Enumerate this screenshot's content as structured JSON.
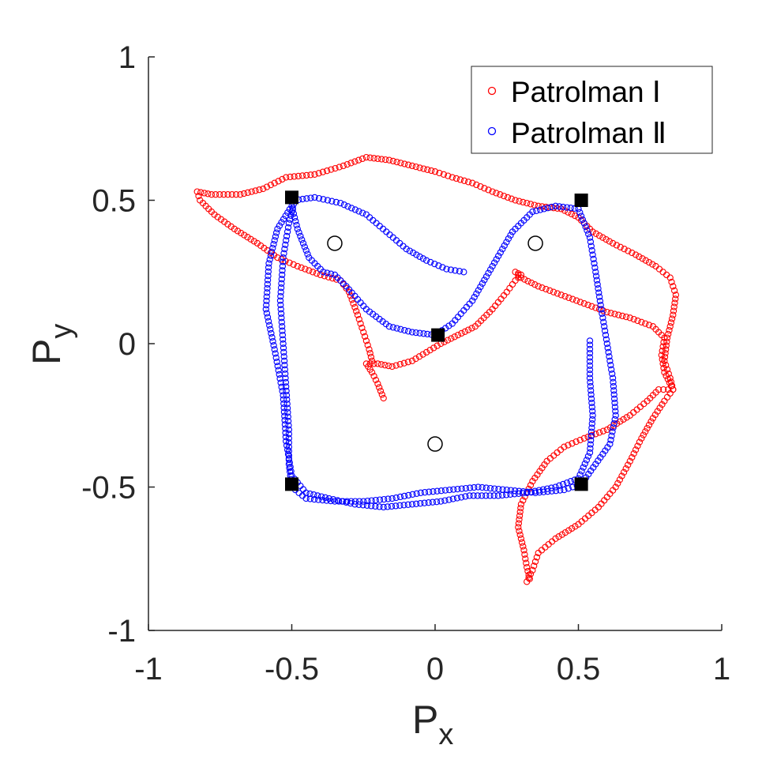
{
  "chart_data": {
    "type": "scatter",
    "xlabel": "P",
    "xlabel_sub": "x",
    "ylabel": "P",
    "ylabel_sub": "y",
    "xlim": [
      -1,
      1
    ],
    "ylim": [
      -1,
      1
    ],
    "xticks": [
      -1,
      -0.5,
      0,
      0.5,
      1
    ],
    "yticks": [
      -1,
      -0.5,
      0,
      0.5,
      1
    ],
    "xtick_labels": [
      "-1",
      "-0.5",
      "0",
      "0.5",
      "1"
    ],
    "ytick_labels": [
      "-1",
      "-0.5",
      "0",
      "0.5",
      "1"
    ],
    "grid": false,
    "legend_position": "top-right",
    "series": [
      {
        "name": "Patrolman Ⅰ",
        "color": "#ff0000",
        "marker": "open-circle",
        "points": [
          [
            -0.18,
            -0.19
          ],
          [
            -0.2,
            -0.14
          ],
          [
            -0.22,
            -0.1
          ],
          [
            -0.24,
            -0.07
          ],
          [
            -0.2,
            -0.07
          ],
          [
            -0.15,
            -0.08
          ],
          [
            -0.08,
            -0.06
          ],
          [
            -0.03,
            -0.03
          ],
          [
            0.02,
            0.0
          ],
          [
            0.08,
            0.03
          ],
          [
            0.14,
            0.06
          ],
          [
            0.2,
            0.12
          ],
          [
            0.25,
            0.18
          ],
          [
            0.28,
            0.22
          ],
          [
            0.3,
            0.24
          ],
          [
            0.28,
            0.25
          ],
          [
            0.3,
            0.23
          ],
          [
            0.36,
            0.2
          ],
          [
            0.44,
            0.17
          ],
          [
            0.52,
            0.14
          ],
          [
            0.6,
            0.11
          ],
          [
            0.68,
            0.09
          ],
          [
            0.76,
            0.06
          ],
          [
            0.8,
            0.02
          ],
          [
            0.79,
            -0.04
          ],
          [
            0.8,
            -0.1
          ],
          [
            0.83,
            -0.16
          ],
          [
            0.78,
            -0.16
          ],
          [
            0.74,
            -0.2
          ],
          [
            0.68,
            -0.25
          ],
          [
            0.6,
            -0.3
          ],
          [
            0.52,
            -0.33
          ],
          [
            0.45,
            -0.36
          ],
          [
            0.39,
            -0.41
          ],
          [
            0.34,
            -0.48
          ],
          [
            0.3,
            -0.56
          ],
          [
            0.29,
            -0.64
          ],
          [
            0.31,
            -0.72
          ],
          [
            0.32,
            -0.78
          ],
          [
            0.33,
            -0.82
          ],
          [
            0.32,
            -0.83
          ],
          [
            0.34,
            -0.79
          ],
          [
            0.36,
            -0.73
          ],
          [
            0.42,
            -0.68
          ],
          [
            0.5,
            -0.63
          ],
          [
            0.57,
            -0.57
          ],
          [
            0.63,
            -0.5
          ],
          [
            0.68,
            -0.41
          ],
          [
            0.72,
            -0.33
          ],
          [
            0.76,
            -0.26
          ],
          [
            0.8,
            -0.2
          ],
          [
            0.83,
            -0.16
          ],
          [
            0.82,
            -0.12
          ],
          [
            0.8,
            -0.06
          ],
          [
            0.81,
            0.02
          ],
          [
            0.83,
            0.1
          ],
          [
            0.84,
            0.17
          ],
          [
            0.82,
            0.23
          ],
          [
            0.77,
            0.27
          ],
          [
            0.7,
            0.31
          ],
          [
            0.62,
            0.35
          ],
          [
            0.55,
            0.39
          ],
          [
            0.5,
            0.44
          ],
          [
            0.44,
            0.47
          ],
          [
            0.36,
            0.48
          ],
          [
            0.28,
            0.5
          ],
          [
            0.2,
            0.53
          ],
          [
            0.13,
            0.56
          ],
          [
            0.06,
            0.58
          ],
          [
            0.0,
            0.6
          ],
          [
            -0.08,
            0.62
          ],
          [
            -0.16,
            0.64
          ],
          [
            -0.24,
            0.65
          ],
          [
            -0.32,
            0.62
          ],
          [
            -0.42,
            0.59
          ],
          [
            -0.52,
            0.58
          ],
          [
            -0.6,
            0.54
          ],
          [
            -0.68,
            0.52
          ],
          [
            -0.78,
            0.52
          ],
          [
            -0.83,
            0.53
          ],
          [
            -0.82,
            0.5
          ],
          [
            -0.77,
            0.45
          ],
          [
            -0.7,
            0.4
          ],
          [
            -0.62,
            0.35
          ],
          [
            -0.55,
            0.3
          ],
          [
            -0.48,
            0.27
          ],
          [
            -0.4,
            0.24
          ],
          [
            -0.33,
            0.22
          ],
          [
            -0.3,
            0.18
          ],
          [
            -0.27,
            0.1
          ],
          [
            -0.25,
            0.04
          ],
          [
            -0.23,
            -0.02
          ],
          [
            -0.22,
            -0.06
          ]
        ]
      },
      {
        "name": "Patrolman Ⅱ",
        "color": "#0000ff",
        "marker": "open-circle",
        "points": [
          [
            0.1,
            0.25
          ],
          [
            0.04,
            0.26
          ],
          [
            -0.03,
            0.29
          ],
          [
            -0.1,
            0.33
          ],
          [
            -0.17,
            0.39
          ],
          [
            -0.24,
            0.45
          ],
          [
            -0.33,
            0.49
          ],
          [
            -0.42,
            0.51
          ],
          [
            -0.49,
            0.5
          ],
          [
            -0.51,
            0.42
          ],
          [
            -0.53,
            0.3
          ],
          [
            -0.54,
            0.15
          ],
          [
            -0.53,
            0.0
          ],
          [
            -0.52,
            -0.15
          ],
          [
            -0.51,
            -0.3
          ],
          [
            -0.51,
            -0.42
          ],
          [
            -0.5,
            -0.5
          ],
          [
            -0.45,
            -0.54
          ],
          [
            -0.35,
            -0.55
          ],
          [
            -0.25,
            -0.55
          ],
          [
            -0.15,
            -0.54
          ],
          [
            -0.05,
            -0.52
          ],
          [
            0.05,
            -0.51
          ],
          [
            0.15,
            -0.5
          ],
          [
            0.25,
            -0.51
          ],
          [
            0.35,
            -0.52
          ],
          [
            0.45,
            -0.51
          ],
          [
            0.51,
            -0.49
          ],
          [
            0.56,
            -0.42
          ],
          [
            0.61,
            -0.35
          ],
          [
            0.63,
            -0.25
          ],
          [
            0.62,
            -0.12
          ],
          [
            0.6,
            0.0
          ],
          [
            0.58,
            0.12
          ],
          [
            0.56,
            0.25
          ],
          [
            0.54,
            0.37
          ],
          [
            0.5,
            0.47
          ],
          [
            0.42,
            0.48
          ],
          [
            0.34,
            0.46
          ],
          [
            0.27,
            0.39
          ],
          [
            0.2,
            0.27
          ],
          [
            0.13,
            0.15
          ],
          [
            0.06,
            0.07
          ],
          [
            0.0,
            0.03
          ],
          [
            -0.08,
            0.04
          ],
          [
            -0.16,
            0.06
          ],
          [
            -0.24,
            0.12
          ],
          [
            -0.31,
            0.2
          ],
          [
            -0.35,
            0.24
          ],
          [
            -0.39,
            0.25
          ],
          [
            -0.44,
            0.3
          ],
          [
            -0.48,
            0.4
          ],
          [
            -0.5,
            0.48
          ],
          [
            -0.55,
            0.4
          ],
          [
            -0.58,
            0.28
          ],
          [
            -0.59,
            0.12
          ],
          [
            -0.56,
            -0.02
          ],
          [
            -0.53,
            -0.18
          ],
          [
            -0.52,
            -0.34
          ],
          [
            -0.5,
            -0.46
          ],
          [
            -0.45,
            -0.52
          ],
          [
            -0.37,
            -0.54
          ],
          [
            -0.28,
            -0.56
          ],
          [
            -0.18,
            -0.57
          ],
          [
            -0.08,
            -0.56
          ],
          [
            0.02,
            -0.55
          ],
          [
            0.12,
            -0.53
          ],
          [
            0.22,
            -0.53
          ],
          [
            0.32,
            -0.52
          ],
          [
            0.42,
            -0.5
          ],
          [
            0.5,
            -0.47
          ],
          [
            0.54,
            -0.38
          ],
          [
            0.55,
            -0.25
          ],
          [
            0.54,
            -0.12
          ],
          [
            0.54,
            0.01
          ]
        ]
      }
    ],
    "squares": [
      [
        -0.5,
        0.51
      ],
      [
        0.51,
        0.5
      ],
      [
        0.01,
        0.03
      ],
      [
        -0.5,
        -0.49
      ],
      [
        0.51,
        -0.49
      ]
    ],
    "circles": [
      [
        -0.35,
        0.35
      ],
      [
        0.35,
        0.35
      ],
      [
        0.0,
        -0.35
      ]
    ]
  }
}
